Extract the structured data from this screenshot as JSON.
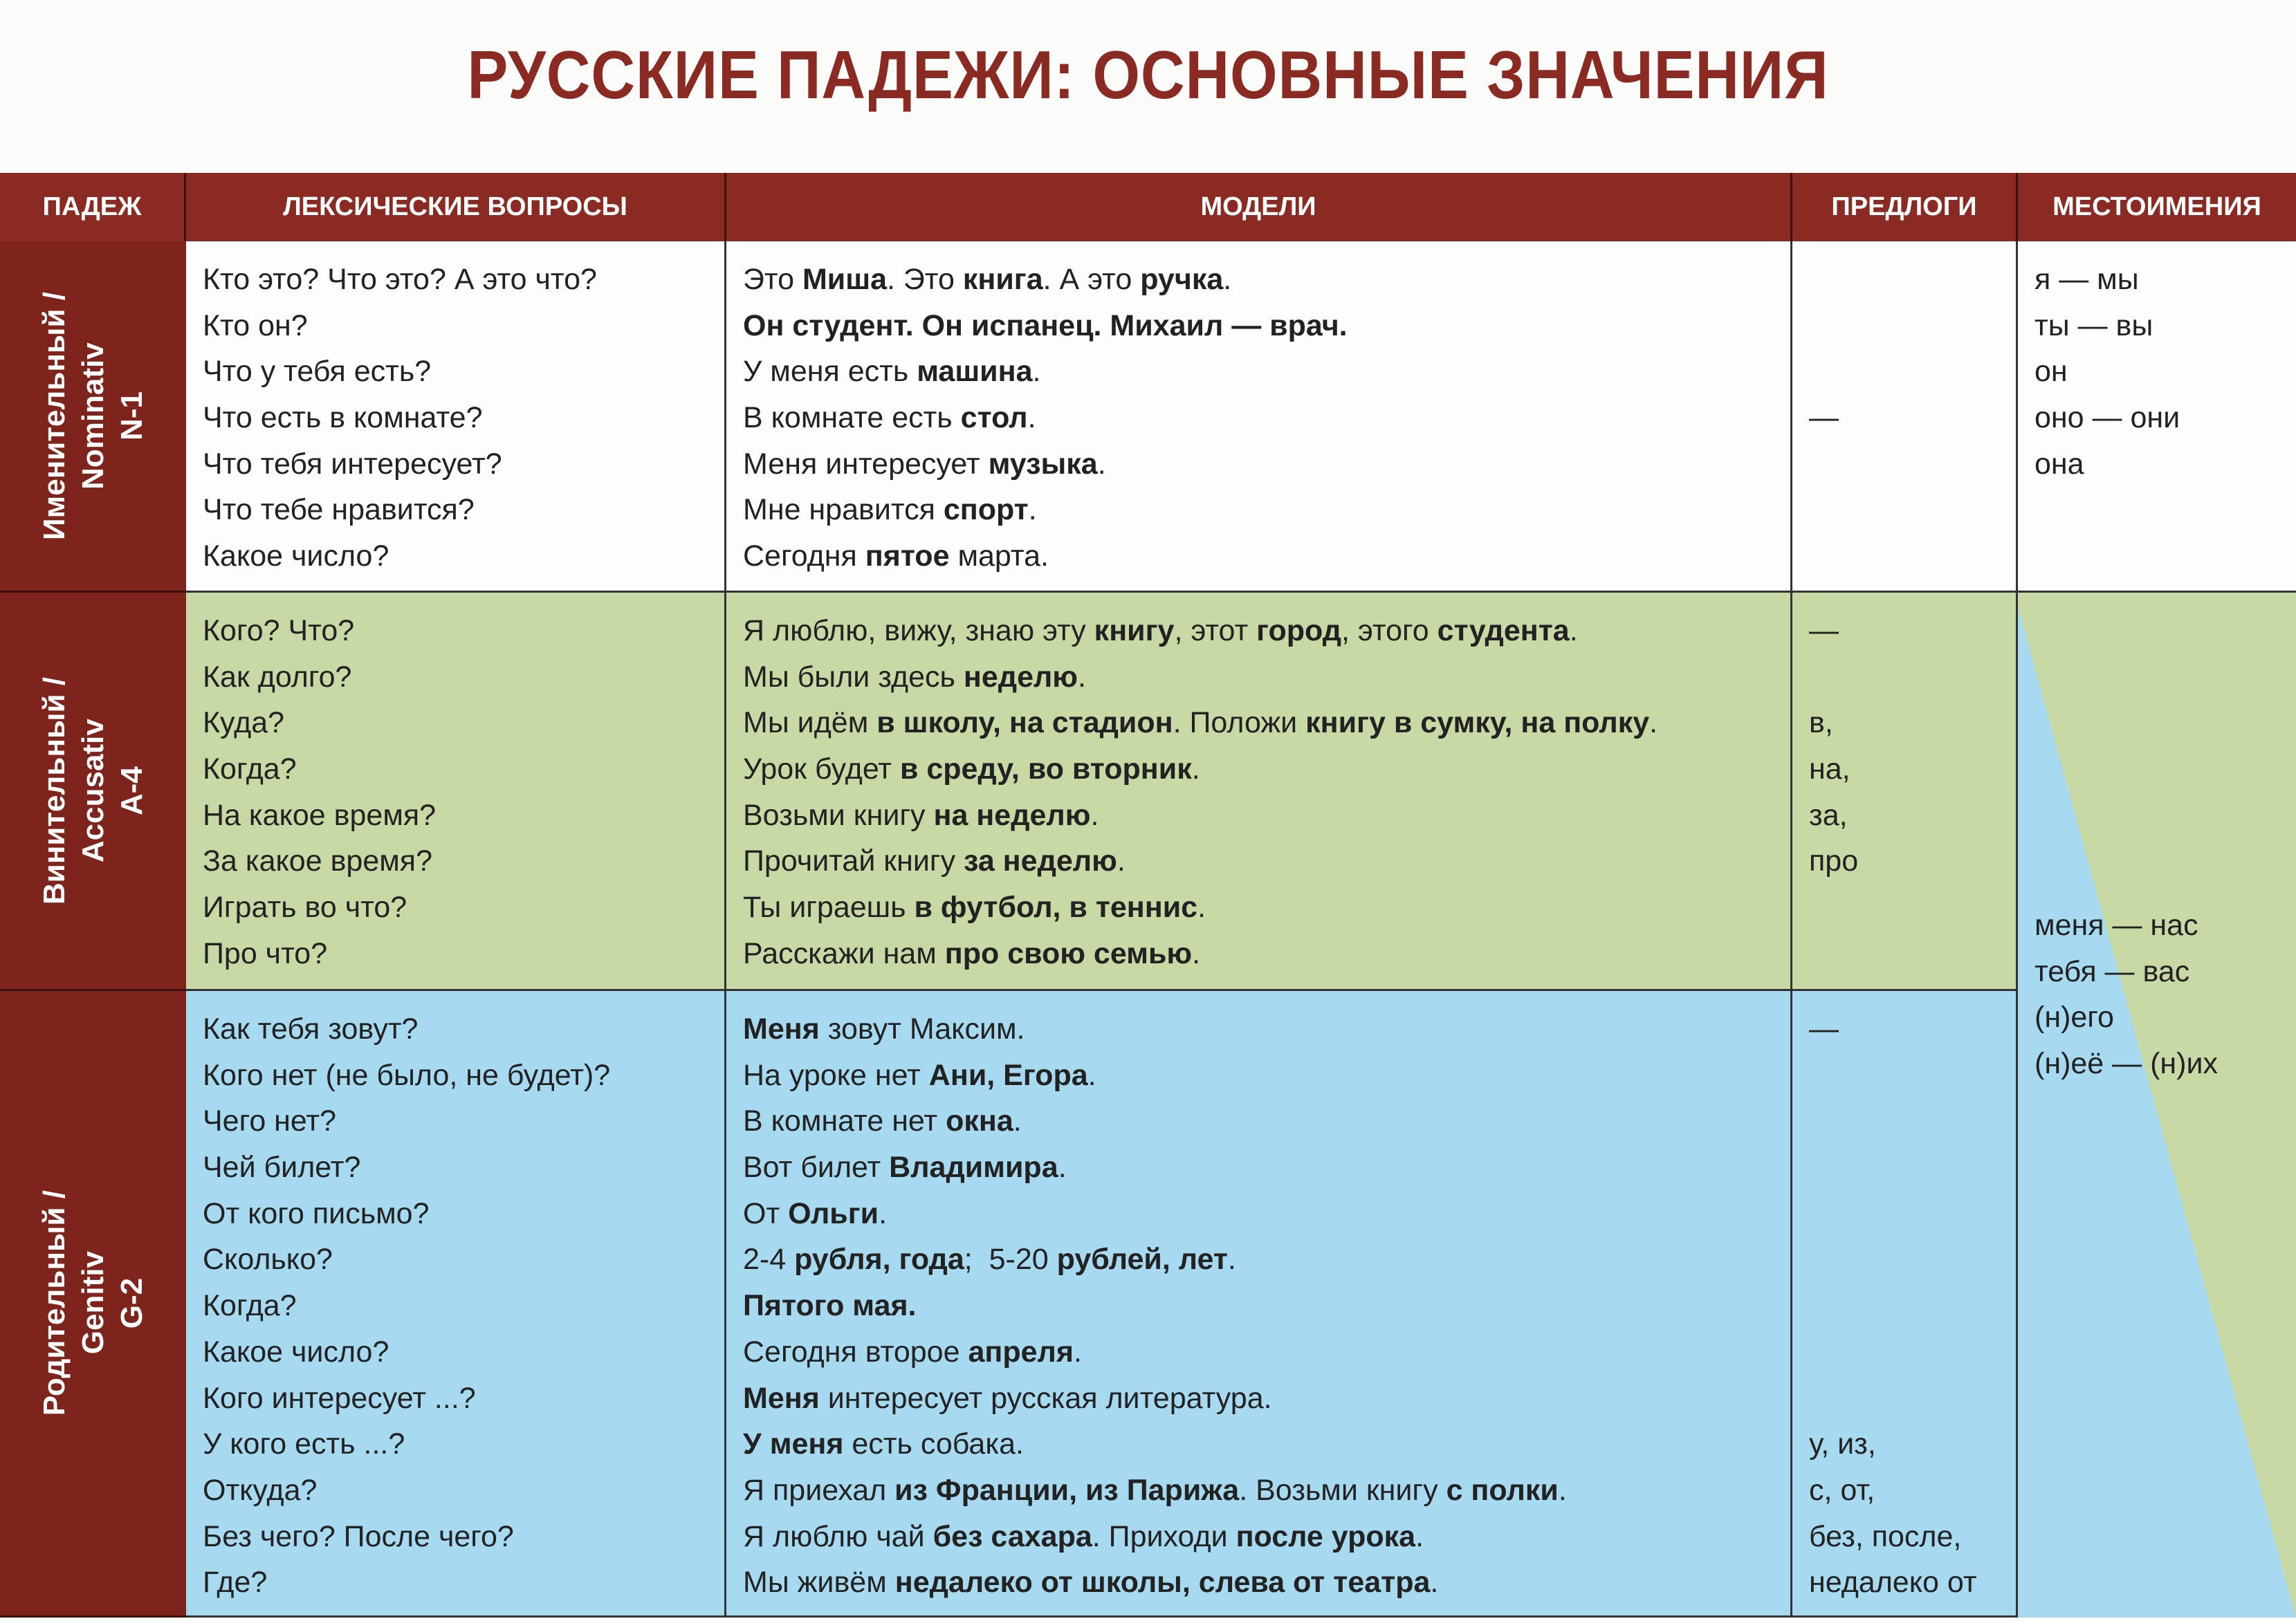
{
  "title": "РУССКИЕ ПАДЕЖИ:  ОСНОВНЫЕ ЗНАЧЕНИЯ",
  "headers": [
    "ПАДЕЖ",
    "ЛЕКСИЧЕСКИЕ ВОПРОСЫ",
    "МОДЕЛИ",
    "ПРЕДЛОГИ",
    "МЕСТОИМЕНИЯ"
  ],
  "colors": {
    "header": "#8a2a22",
    "case_label": "#7e241d",
    "nominative": "#fdfdfc",
    "accusative": "#c9d9a6",
    "genitive": "#a7daf0"
  },
  "rows": [
    {
      "case": [
        "Именительный /",
        "Nominativ",
        "N-1"
      ],
      "questions": [
        "Кто это? Что это? А это что?",
        "Кто он?",
        "Что у тебя есть?",
        "Что есть в комнате?",
        "Что тебя интересует?",
        "Что тебе нравится?",
        "Какое число?"
      ],
      "models": [
        [
          {
            "t": "Это ",
            "b": false
          },
          {
            "t": "Миша",
            "b": true
          },
          {
            "t": ". Это ",
            "b": false
          },
          {
            "t": "книга",
            "b": true
          },
          {
            "t": ". А это ",
            "b": false
          },
          {
            "t": "ручка",
            "b": true
          },
          {
            "t": ".",
            "b": false
          }
        ],
        [
          {
            "t": "Он студент. Он испанец. Михаил — врач.",
            "b": true
          }
        ],
        [
          {
            "t": "У меня есть ",
            "b": false
          },
          {
            "t": "машина",
            "b": true
          },
          {
            "t": ".",
            "b": false
          }
        ],
        [
          {
            "t": "В комнате есть ",
            "b": false
          },
          {
            "t": "стол",
            "b": true
          },
          {
            "t": ".",
            "b": false
          }
        ],
        [
          {
            "t": "Меня интересует ",
            "b": false
          },
          {
            "t": "музыка",
            "b": true
          },
          {
            "t": ".",
            "b": false
          }
        ],
        [
          {
            "t": "Мне нравится ",
            "b": false
          },
          {
            "t": "спорт",
            "b": true
          },
          {
            "t": ".",
            "b": false
          }
        ],
        [
          {
            "t": "Сегодня ",
            "b": false
          },
          {
            "t": "пятое",
            "b": true
          },
          {
            "t": " марта.",
            "b": false
          }
        ]
      ],
      "prepositions": [
        "",
        "",
        "",
        "—"
      ],
      "pronouns": [
        "я — мы",
        "ты — вы",
        "он",
        "оно — они",
        "она"
      ]
    },
    {
      "case": [
        "Винительный /",
        "Accusativ",
        "A-4"
      ],
      "questions": [
        "Кого? Что?",
        "Как долго?",
        "Куда?",
        "Когда?",
        "На какое время?",
        "За какое время?",
        "Играть во что?",
        "Про что?"
      ],
      "models": [
        [
          {
            "t": "Я люблю, вижу, знаю эту ",
            "b": false
          },
          {
            "t": "книгу",
            "b": true
          },
          {
            "t": ", этот ",
            "b": false
          },
          {
            "t": "город",
            "b": true
          },
          {
            "t": ", этого ",
            "b": false
          },
          {
            "t": "студента",
            "b": true
          },
          {
            "t": ".",
            "b": false
          }
        ],
        [
          {
            "t": "Мы были здесь ",
            "b": false
          },
          {
            "t": "неделю",
            "b": true
          },
          {
            "t": ".",
            "b": false
          }
        ],
        [
          {
            "t": "Мы идём ",
            "b": false
          },
          {
            "t": "в школу, на стадион",
            "b": true
          },
          {
            "t": ". Положи ",
            "b": false
          },
          {
            "t": "книгу в сумку, на полку",
            "b": true
          },
          {
            "t": ".",
            "b": false
          }
        ],
        [
          {
            "t": "Урок будет ",
            "b": false
          },
          {
            "t": "в среду, во вторник",
            "b": true
          },
          {
            "t": ".",
            "b": false
          }
        ],
        [
          {
            "t": "Возьми книгу ",
            "b": false
          },
          {
            "t": "на неделю",
            "b": true
          },
          {
            "t": ".",
            "b": false
          }
        ],
        [
          {
            "t": "Прочитай книгу ",
            "b": false
          },
          {
            "t": "за неделю",
            "b": true
          },
          {
            "t": ".",
            "b": false
          }
        ],
        [
          {
            "t": "Ты играешь ",
            "b": false
          },
          {
            "t": "в футбол, в теннис",
            "b": true
          },
          {
            "t": ".",
            "b": false
          }
        ],
        [
          {
            "t": "Расскажи нам ",
            "b": false
          },
          {
            "t": "про свою семью",
            "b": true
          },
          {
            "t": ".",
            "b": false
          }
        ]
      ],
      "prepositions": [
        "—",
        "",
        "в,",
        "на,",
        "за,",
        "про"
      ]
    },
    {
      "case": [
        "Родительный /",
        "Genitiv",
        "G-2"
      ],
      "questions": [
        "Как тебя зовут?",
        "Кого нет (не было, не будет)?",
        "Чего нет?",
        "Чей билет?",
        "От кого письмо?",
        "Сколько?",
        "Когда?",
        "Какое число?",
        "Кого интересует ...?",
        "У кого есть ...?",
        "Откуда?",
        "Без чего? После чего?",
        "Где?"
      ],
      "models": [
        [
          {
            "t": "Меня",
            "b": true
          },
          {
            "t": " зовут Максим.",
            "b": false
          }
        ],
        [
          {
            "t": "На уроке нет ",
            "b": false
          },
          {
            "t": "Ани, Егора",
            "b": true
          },
          {
            "t": ".",
            "b": false
          }
        ],
        [
          {
            "t": "В комнате нет ",
            "b": false
          },
          {
            "t": "окна",
            "b": true
          },
          {
            "t": ".",
            "b": false
          }
        ],
        [
          {
            "t": "Вот билет ",
            "b": false
          },
          {
            "t": "Владимира",
            "b": true
          },
          {
            "t": ".",
            "b": false
          }
        ],
        [
          {
            "t": "От ",
            "b": false
          },
          {
            "t": "Ольги",
            "b": true
          },
          {
            "t": ".",
            "b": false
          }
        ],
        [
          {
            "t": "2-4 ",
            "b": false
          },
          {
            "t": "рубля, года",
            "b": true
          },
          {
            "t": ";  5-20 ",
            "b": false
          },
          {
            "t": "рублей, лет",
            "b": true
          },
          {
            "t": ".",
            "b": false
          }
        ],
        [
          {
            "t": "Пятого мая.",
            "b": true
          }
        ],
        [
          {
            "t": "Сегодня второе ",
            "b": false
          },
          {
            "t": "апреля",
            "b": true
          },
          {
            "t": ".",
            "b": false
          }
        ],
        [
          {
            "t": "Меня",
            "b": true
          },
          {
            "t": " интересует русская литература.",
            "b": false
          }
        ],
        [
          {
            "t": "У меня",
            "b": true
          },
          {
            "t": " есть собака.",
            "b": false
          }
        ],
        [
          {
            "t": "Я приехал ",
            "b": false
          },
          {
            "t": "из Франции, из Парижа",
            "b": true
          },
          {
            "t": ". Возьми книгу ",
            "b": false
          },
          {
            "t": "с полки",
            "b": true
          },
          {
            "t": ".",
            "b": false
          }
        ],
        [
          {
            "t": "Я люблю чай ",
            "b": false
          },
          {
            "t": "без сахара",
            "b": true
          },
          {
            "t": ". Приходи ",
            "b": false
          },
          {
            "t": "после урока",
            "b": true
          },
          {
            "t": ".",
            "b": false
          }
        ],
        [
          {
            "t": "Мы живём ",
            "b": false
          },
          {
            "t": "недалеко от школы, слева от театра",
            "b": true
          },
          {
            "t": ".",
            "b": false
          }
        ]
      ],
      "prepositions": [
        "—",
        "",
        "",
        "",
        "",
        "",
        "",
        "",
        "",
        "у, из,",
        "с, от,",
        "без, после,",
        "недалеко от"
      ]
    }
  ],
  "oblique_pronouns": [
    "меня — нас",
    "тебя — вас",
    "(н)его",
    "(н)её — (н)их"
  ]
}
